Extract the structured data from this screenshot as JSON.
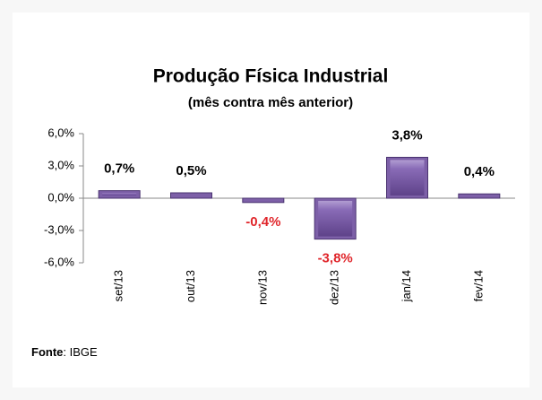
{
  "chart_data": {
    "type": "bar",
    "title": "Produção Física Industrial",
    "subtitle": "(mês contra mês anterior)",
    "categories": [
      "set/13",
      "out/13",
      "nov/13",
      "dez/13",
      "jan/14",
      "fev/14"
    ],
    "values": [
      0.7,
      0.5,
      -0.4,
      -3.8,
      3.8,
      0.4
    ],
    "value_labels": [
      "0,7%",
      "0,5%",
      "-0,4%",
      "-3,8%",
      "3,8%",
      "0,4%"
    ],
    "color": "#7d60a8",
    "negative_label_color": "#e0262b",
    "ylim": [
      -6,
      6
    ],
    "yticks": [
      {
        "value": -6,
        "label": "-6,0%"
      },
      {
        "value": -3,
        "label": "-3,0%"
      },
      {
        "value": 0,
        "label": "0,0%"
      },
      {
        "value": 3,
        "label": "3,0%"
      },
      {
        "value": 6,
        "label": "6,0%"
      }
    ],
    "grid": false,
    "source_label": "Fonte",
    "source_text": ": IBGE"
  }
}
